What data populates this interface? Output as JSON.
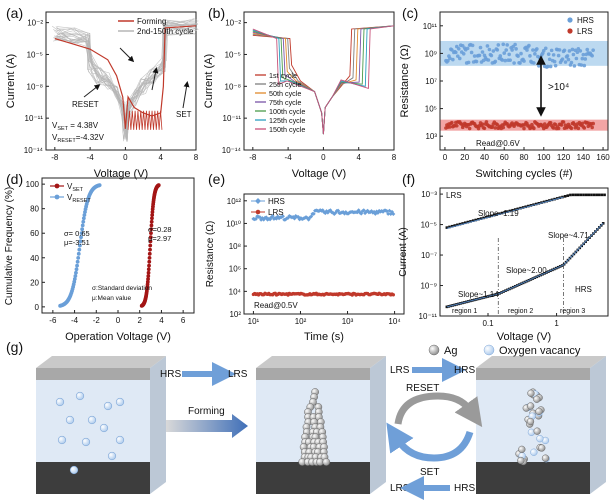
{
  "colors": {
    "red": "#c0392b",
    "blue": "#6a9fd8",
    "dark_red": "#a31515",
    "gray": "#b5b5b5",
    "hrs_band": "#bcd9f0",
    "lrs_band": "#f2a5a5",
    "slope_line": "#4f7fb8",
    "arrow_blue": "#6f9fd8",
    "layer_top": "#a8a8a8",
    "layer_bottom": "#3d3d3d",
    "switch_layer": "#dfe9f5"
  },
  "panel_labels": [
    "(a)",
    "(b)",
    "(c)",
    "(d)",
    "(e)",
    "(f)",
    "(g)"
  ],
  "chart_data": [
    {
      "id": "a",
      "type": "line",
      "xlabel": "Voltage (V)",
      "ylabel": "Current (A)",
      "xlim": [
        -9,
        8
      ],
      "ylim_log": [
        -14,
        -1
      ],
      "xticks": [
        -8,
        -4,
        0,
        4,
        8
      ],
      "yticks": [
        "10⁻²",
        "10⁻⁵",
        "10⁻⁸",
        "10⁻¹¹",
        "10⁻¹⁴"
      ],
      "ytick_exponents": [
        -2,
        -5,
        -8,
        -11,
        -14
      ],
      "legend": [
        "Forming",
        "2nd-150th cycle"
      ],
      "annotations": {
        "reset": "RESET",
        "set": "SET",
        "vset_label": "V",
        "vset_sub": "SET",
        "vset_val": " = 4.38V",
        "vreset_label": "V",
        "vreset_sub": "RESET",
        "vreset_val": "=-4.32V"
      },
      "forming_log_points": [
        [
          -8,
          -3.5
        ],
        [
          -6,
          -4
        ],
        [
          -4,
          -4.5
        ],
        [
          -2,
          -5.5
        ],
        [
          -1,
          -7
        ],
        [
          -0.3,
          -9
        ],
        [
          0,
          -12
        ],
        [
          0.3,
          -9
        ],
        [
          1,
          -10
        ],
        [
          2,
          -10.5
        ],
        [
          3,
          -10.8
        ],
        [
          4,
          -10.5
        ],
        [
          4.3,
          -8
        ],
        [
          4.5,
          -2.5
        ],
        [
          8,
          -2.3
        ]
      ],
      "cycles_log_points": [
        [
          -8,
          -3
        ],
        [
          -6,
          -3.2
        ],
        [
          -4.3,
          -3.5
        ],
        [
          -4,
          -6
        ],
        [
          -3,
          -7
        ],
        [
          -2,
          -7.5
        ],
        [
          -1,
          -8.5
        ],
        [
          -0.3,
          -10
        ],
        [
          0,
          -12.5
        ],
        [
          0.3,
          -10
        ],
        [
          1,
          -9
        ],
        [
          2,
          -8
        ],
        [
          3,
          -7
        ],
        [
          4.4,
          -6
        ],
        [
          4.5,
          -2.5
        ],
        [
          8,
          -2.3
        ]
      ]
    },
    {
      "id": "b",
      "type": "line",
      "xlabel": "Voltage (V)",
      "ylabel": "Current (A)",
      "xlim": [
        -9,
        8
      ],
      "ylim_log": [
        -14,
        -1
      ],
      "xticks": [
        -8,
        -4,
        0,
        4,
        8
      ],
      "yticks": [
        "10⁻²",
        "10⁻⁵",
        "10⁻⁸",
        "10⁻¹¹",
        "10⁻¹⁴"
      ],
      "ytick_exponents": [
        -2,
        -5,
        -8,
        -11,
        -14
      ],
      "series": [
        {
          "name": "1st cycle",
          "color": "#c0392b"
        },
        {
          "name": "25th cycle",
          "color": "#7f7f7f"
        },
        {
          "name": "50th cycle",
          "color": "#e08a2c"
        },
        {
          "name": "75th cycle",
          "color": "#7a55a8"
        },
        {
          "name": "100th cycle",
          "color": "#4a9a4a"
        },
        {
          "name": "125th cycle",
          "color": "#2b9fbf"
        },
        {
          "name": "150th cycle",
          "color": "#c8527a"
        }
      ]
    },
    {
      "id": "c",
      "type": "scatter",
      "xlabel": "Switching cycles (#)",
      "ylabel": "Resistance (Ω)",
      "xlim": [
        -5,
        165
      ],
      "ylim_log": [
        2,
        12
      ],
      "xticks": [
        0,
        20,
        40,
        60,
        80,
        100,
        120,
        140,
        160
      ],
      "yticks": [
        "10¹¹",
        "10⁹",
        "10⁷",
        "10⁵",
        "10³"
      ],
      "ytick_exponents": [
        11,
        9,
        7,
        5,
        3
      ],
      "legend": [
        "HRS",
        "LRS"
      ],
      "annotations": {
        "ratio": ">10⁴",
        "read": "Read@0.6V"
      },
      "hrs_level_log": 9,
      "lrs_level_log": 3.8
    },
    {
      "id": "d",
      "type": "scatter",
      "xlabel": "Operation Voltage (V)",
      "ylabel": "Cumulative Frequency (%)",
      "xlim": [
        -7,
        7
      ],
      "ylim": [
        -5,
        105
      ],
      "xticks": [
        -6,
        -4,
        -2,
        0,
        2,
        4,
        6
      ],
      "yticks": [
        0,
        20,
        40,
        60,
        80,
        100
      ],
      "legend_main": [
        "V",
        "V"
      ],
      "legend_sub": [
        "SET",
        "RESET"
      ],
      "annotations": {
        "sigma_reset": "σ= 0.65",
        "mu_reset": "μ=-3.51",
        "sigma_set": "σ=0.28",
        "mu_set": "μ=2.97",
        "note1": "σ:Standard deviation",
        "note2": "μ:Mean value"
      },
      "set_mu": 2.97,
      "set_sigma": 0.28,
      "reset_mu": -3.51,
      "reset_sigma": 0.65
    },
    {
      "id": "e",
      "type": "scatter",
      "xlabel": "Time (s)",
      "ylabel": "Resistance (Ω)",
      "xlim_log": [
        0.8,
        4.2
      ],
      "ylim_log": [
        2,
        12.6
      ],
      "xticks": [
        "10¹",
        "10²",
        "10³",
        "10⁴"
      ],
      "xtick_exponents": [
        1,
        2,
        3,
        4
      ],
      "yticks": [
        "10¹²",
        "10¹⁰",
        "10⁸",
        "10⁶",
        "10⁴",
        "10²"
      ],
      "ytick_exponents": [
        12,
        10,
        8,
        6,
        4,
        2
      ],
      "legend": [
        "HRS",
        "LRS"
      ],
      "annotations": {
        "read": "Read@0.5V"
      }
    },
    {
      "id": "f",
      "type": "scatter",
      "xlabel": "Voltage (V)",
      "ylabel": "Current (A)",
      "xlim_log": [
        -1.7,
        0.75
      ],
      "ylim_log": [
        -11,
        -2.6
      ],
      "xticks": [
        "0.1",
        "1"
      ],
      "xtick_exponents": [
        -1,
        0
      ],
      "yticks": [
        "10⁻³",
        "10⁻⁵",
        "10⁻⁷",
        "10⁻⁹",
        "10⁻¹¹"
      ],
      "ytick_exponents": [
        -3,
        -5,
        -7,
        -9,
        -11
      ],
      "annotations": {
        "lrs": "LRS",
        "hrs": "HRS",
        "slope_lrs": "Slope~1.19",
        "slope_1": "Slope~1.14",
        "slope_2": "Slope~2.00",
        "slope_3": "Slope~4.71",
        "region1": "region 1",
        "region2": "region 2",
        "region3": "region 3"
      }
    }
  ],
  "schematic": {
    "hrs": "HRS",
    "lrs": "LRS",
    "forming": "Forming",
    "reset": "RESET",
    "set": "SET",
    "legend_ag": "Ag",
    "legend_vacancy": "Oxygen vacancy",
    "top_labels_1": [
      "HRS",
      "LRS"
    ],
    "top_labels_2": [
      "LRS",
      "HRS"
    ],
    "bottom_labels": [
      "LRS",
      "HRS"
    ]
  }
}
